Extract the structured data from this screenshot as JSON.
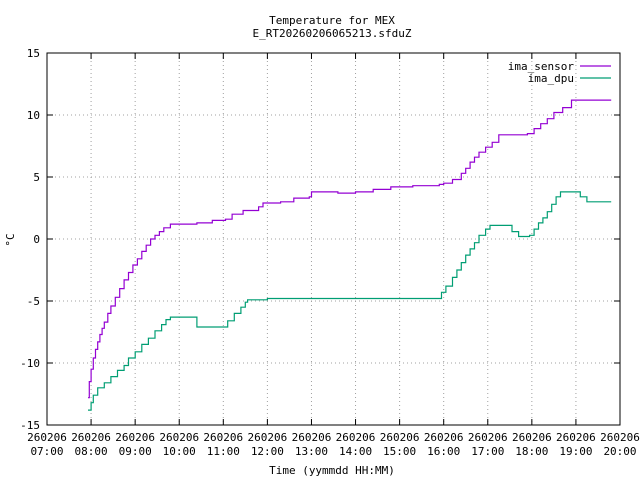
{
  "chart_data": {
    "type": "line",
    "title": "Temperature for MEX",
    "subtitle": "E_RT20260206065213.sfduZ",
    "xlabel": "Time (yymmdd HH:MM)",
    "ylabel": "°C",
    "ylim": [
      -15,
      15
    ],
    "yticks": [
      {
        "v": 15,
        "label": "15"
      },
      {
        "v": 10,
        "label": "10"
      },
      {
        "v": 5,
        "label": "5"
      },
      {
        "v": 0,
        "label": "0"
      },
      {
        "v": -5,
        "label": "-5"
      },
      {
        "v": -10,
        "label": "-10"
      },
      {
        "v": -15,
        "label": "-15"
      }
    ],
    "xlim_hours": [
      7,
      20
    ],
    "xticks": [
      {
        "h": 7,
        "date": "260206",
        "time": "07:00"
      },
      {
        "h": 8,
        "date": "260206",
        "time": "08:00"
      },
      {
        "h": 9,
        "date": "260206",
        "time": "09:00"
      },
      {
        "h": 10,
        "date": "260206",
        "time": "10:00"
      },
      {
        "h": 11,
        "date": "260206",
        "time": "11:00"
      },
      {
        "h": 12,
        "date": "260206",
        "time": "12:00"
      },
      {
        "h": 13,
        "date": "260206",
        "time": "13:00"
      },
      {
        "h": 14,
        "date": "260206",
        "time": "14:00"
      },
      {
        "h": 15,
        "date": "260206",
        "time": "15:00"
      },
      {
        "h": 16,
        "date": "260206",
        "time": "16:00"
      },
      {
        "h": 17,
        "date": "260206",
        "time": "17:00"
      },
      {
        "h": 18,
        "date": "260206",
        "time": "18:00"
      },
      {
        "h": 19,
        "date": "260206",
        "time": "19:00"
      },
      {
        "h": 20,
        "date": "260206",
        "time": "20:00"
      }
    ],
    "grid": true,
    "legend_position": "top-right",
    "series": [
      {
        "name": "ima_sensor",
        "color": "#9400d3",
        "points": [
          [
            7.93,
            -12.8
          ],
          [
            7.96,
            -11.5
          ],
          [
            8.0,
            -10.5
          ],
          [
            8.05,
            -9.6
          ],
          [
            8.1,
            -8.9
          ],
          [
            8.15,
            -8.3
          ],
          [
            8.2,
            -7.7
          ],
          [
            8.25,
            -7.2
          ],
          [
            8.3,
            -6.7
          ],
          [
            8.38,
            -6.0
          ],
          [
            8.45,
            -5.4
          ],
          [
            8.55,
            -4.7
          ],
          [
            8.65,
            -4.0
          ],
          [
            8.75,
            -3.3
          ],
          [
            8.85,
            -2.7
          ],
          [
            8.95,
            -2.1
          ],
          [
            9.05,
            -1.6
          ],
          [
            9.15,
            -1.0
          ],
          [
            9.25,
            -0.5
          ],
          [
            9.35,
            0.0
          ],
          [
            9.45,
            0.3
          ],
          [
            9.55,
            0.6
          ],
          [
            9.65,
            0.9
          ],
          [
            9.8,
            1.2
          ],
          [
            10.3,
            1.2
          ],
          [
            10.4,
            1.3
          ],
          [
            10.5,
            1.3
          ],
          [
            10.6,
            1.3
          ],
          [
            10.75,
            1.5
          ],
          [
            11.05,
            1.6
          ],
          [
            11.2,
            2.0
          ],
          [
            11.45,
            2.3
          ],
          [
            11.8,
            2.6
          ],
          [
            11.9,
            2.9
          ],
          [
            12.3,
            3.0
          ],
          [
            12.6,
            3.3
          ],
          [
            12.95,
            3.4
          ],
          [
            13.0,
            3.8
          ],
          [
            13.6,
            3.7
          ],
          [
            14.0,
            3.8
          ],
          [
            14.4,
            4.0
          ],
          [
            14.8,
            4.2
          ],
          [
            15.3,
            4.3
          ],
          [
            15.9,
            4.4
          ],
          [
            16.0,
            4.5
          ],
          [
            16.2,
            4.8
          ],
          [
            16.4,
            5.3
          ],
          [
            16.5,
            5.7
          ],
          [
            16.6,
            6.2
          ],
          [
            16.7,
            6.6
          ],
          [
            16.8,
            7.0
          ],
          [
            16.95,
            7.4
          ],
          [
            17.1,
            7.8
          ],
          [
            17.25,
            8.4
          ],
          [
            17.9,
            8.5
          ],
          [
            18.05,
            8.9
          ],
          [
            18.2,
            9.3
          ],
          [
            18.35,
            9.7
          ],
          [
            18.5,
            10.2
          ],
          [
            18.7,
            10.6
          ],
          [
            18.9,
            11.2
          ],
          [
            19.8,
            11.2
          ]
        ]
      },
      {
        "name": "ima_dpu",
        "color": "#009e73",
        "points": [
          [
            7.93,
            -13.8
          ],
          [
            8.0,
            -13.2
          ],
          [
            8.05,
            -12.6
          ],
          [
            8.15,
            -12.0
          ],
          [
            8.3,
            -11.6
          ],
          [
            8.45,
            -11.1
          ],
          [
            8.6,
            -10.6
          ],
          [
            8.75,
            -10.2
          ],
          [
            8.85,
            -9.6
          ],
          [
            9.0,
            -9.1
          ],
          [
            9.15,
            -8.5
          ],
          [
            9.3,
            -8.0
          ],
          [
            9.45,
            -7.4
          ],
          [
            9.6,
            -6.9
          ],
          [
            9.7,
            -6.5
          ],
          [
            9.8,
            -6.3
          ],
          [
            10.4,
            -6.4
          ],
          [
            10.4,
            -7.1
          ],
          [
            11.0,
            -7.1
          ],
          [
            11.1,
            -6.6
          ],
          [
            11.25,
            -6.0
          ],
          [
            11.4,
            -5.5
          ],
          [
            11.5,
            -5.1
          ],
          [
            11.55,
            -4.9
          ],
          [
            12.0,
            -4.8
          ],
          [
            14.0,
            -4.8
          ],
          [
            15.0,
            -4.8
          ],
          [
            15.85,
            -4.8
          ],
          [
            15.95,
            -4.3
          ],
          [
            16.05,
            -3.8
          ],
          [
            16.2,
            -3.1
          ],
          [
            16.3,
            -2.5
          ],
          [
            16.4,
            -1.9
          ],
          [
            16.5,
            -1.3
          ],
          [
            16.6,
            -0.8
          ],
          [
            16.7,
            -0.3
          ],
          [
            16.8,
            0.3
          ],
          [
            16.95,
            0.8
          ],
          [
            17.05,
            1.1
          ],
          [
            17.5,
            1.1
          ],
          [
            17.55,
            0.6
          ],
          [
            17.7,
            0.2
          ],
          [
            17.95,
            0.3
          ],
          [
            18.05,
            0.8
          ],
          [
            18.15,
            1.3
          ],
          [
            18.25,
            1.7
          ],
          [
            18.35,
            2.2
          ],
          [
            18.45,
            2.8
          ],
          [
            18.55,
            3.4
          ],
          [
            18.65,
            3.8
          ],
          [
            19.0,
            3.8
          ],
          [
            19.1,
            3.4
          ],
          [
            19.25,
            3.0
          ],
          [
            19.8,
            3.0
          ]
        ]
      }
    ]
  }
}
